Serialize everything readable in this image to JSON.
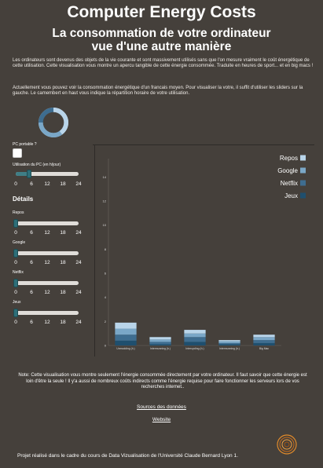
{
  "header": {
    "title": "Computer Energy Costs",
    "subtitle_line1": "La consommation de votre ordinateur",
    "subtitle_line2": "vue d'une autre manière"
  },
  "intro": {
    "p1": "Les ordinateurs sont devenus des objets de la vie courante et sont massivement utilisés sans que l'on mesure vraiment le coût énergétique de cette utilisation. Cette visualisation vous montre un apercu tangible de cette énergie consommée. Traduite en heures de sport... et en big macs !",
    "p2": "Actuellement vous pouvez voir la consommation énergétique d'un francais moyen. Pour visualiser la votre, il suffit d'utiliser les sliders sur la gauche. Le camembert en haut vous indique la répartition horaire de votre utilisation."
  },
  "controls": {
    "laptop_label": "PC portable ?",
    "laptop_checked": false,
    "usage_label": "Utilisation du PC (en h/jour)",
    "usage_value_hours": 5,
    "tick_labels": [
      "0",
      "6",
      "12",
      "18",
      "24"
    ],
    "details_heading": "Détails",
    "sliders": [
      {
        "label": "Repos",
        "value": 0
      },
      {
        "label": "Google",
        "value": 0
      },
      {
        "label": "Netflix",
        "value": 0
      },
      {
        "label": "Jeux",
        "value": 0
      }
    ]
  },
  "chart_data": {
    "type": "bar",
    "stacked": true,
    "categories": [
      "Unmodding (h.)",
      "Intermunning (h.)",
      "Intercycling (h.)",
      "Intermunning (h.)",
      "Big Mac"
    ],
    "series": [
      {
        "name": "Jeux",
        "color": "#1f4f6e",
        "values": [
          0.4,
          0.1,
          0.3,
          0.1,
          0.2
        ]
      },
      {
        "name": "Netflix",
        "color": "#3e6d90",
        "values": [
          0.5,
          0.2,
          0.4,
          0.1,
          0.25
        ]
      },
      {
        "name": "Google",
        "color": "#7aa7c7",
        "values": [
          0.5,
          0.2,
          0.3,
          0.15,
          0.25
        ]
      },
      {
        "name": "Repos",
        "color": "#b9d5ea",
        "values": [
          0.5,
          0.2,
          0.3,
          0.1,
          0.2
        ]
      }
    ],
    "legend_order": [
      "Repos",
      "Google",
      "Netflix",
      "Jeux"
    ],
    "y_ticks": [
      "0",
      "2",
      "4",
      "6",
      "8",
      "10",
      "12",
      "14"
    ],
    "ylim": [
      0,
      15
    ],
    "legend_position": "top-right"
  },
  "pie": {
    "colors": [
      "#b9d5ea",
      "#7aa7c7",
      "#3e6d90"
    ],
    "fractions": [
      0.4,
      0.35,
      0.25
    ]
  },
  "footer": {
    "note": "Note: Cette visualisation vous montre seulement l'énergie consommée directement par votre ordinateur. Il faut savoir que cette énergie est loin d'être la seule ! Il y'a aussi de nombreux coûts indirects comme l'énergie requise pour faire fonctionner les serveurs lors de vos recherches internet..",
    "link_sources": "Sources des données",
    "link_website": "Website",
    "credit": "Projet réalisé dans le cadre du cours de Data Vizualisation de l'Université Claude Bernard Lyon 1."
  }
}
